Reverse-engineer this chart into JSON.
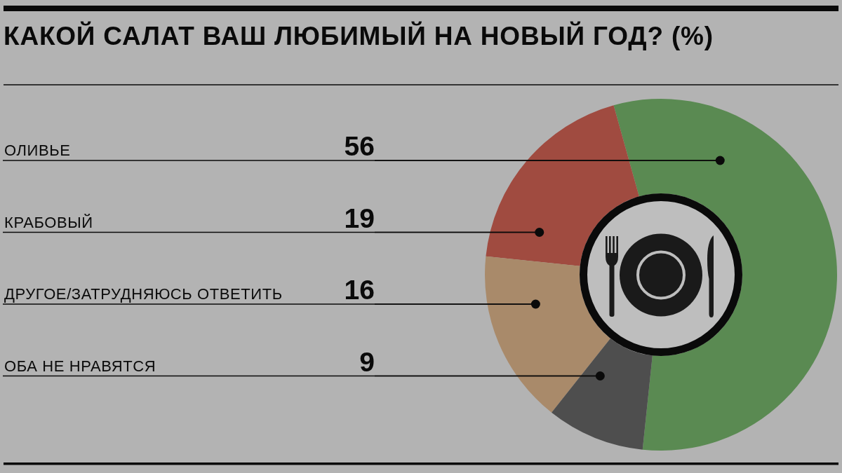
{
  "chart_data": {
    "type": "donut",
    "title": "КАКОЙ САЛАТ ВАШ ЛЮБИМЫЙ НА НОВЫЙ ГОД? (%)",
    "categories": [
      "ОЛИВЬЕ",
      "КРАБОВЫЙ",
      "ДРУГОЕ/ЗАТРУДНЯЮСЬ ОТВЕТИТЬ",
      "ОБА НЕ НРАВЯТСЯ"
    ],
    "values": [
      56,
      19,
      16,
      9
    ],
    "colors": [
      "#5a8a52",
      "#a04b40",
      "#a98a6a",
      "#4e4e4e"
    ],
    "data_labels": true
  }
}
